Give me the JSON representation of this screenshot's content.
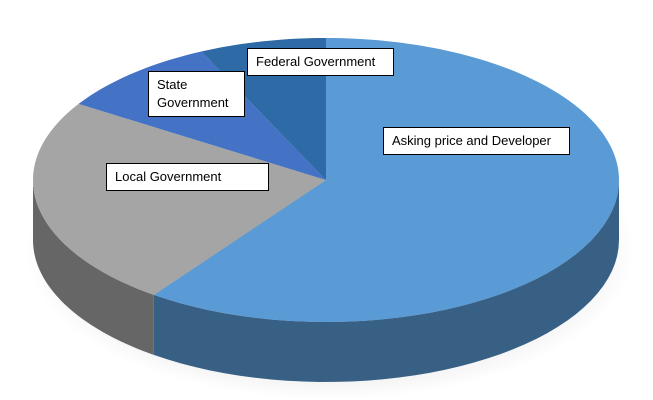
{
  "chart_data": {
    "type": "pie",
    "categories": [
      "Asking price and Developer",
      "Local Government",
      "State Government",
      "Federal Government"
    ],
    "values": [
      60,
      24,
      9,
      7
    ],
    "colors": [
      "#5b9bd5",
      "#a5a5a5",
      "#4472c4",
      "#2e6aa5"
    ]
  }
}
